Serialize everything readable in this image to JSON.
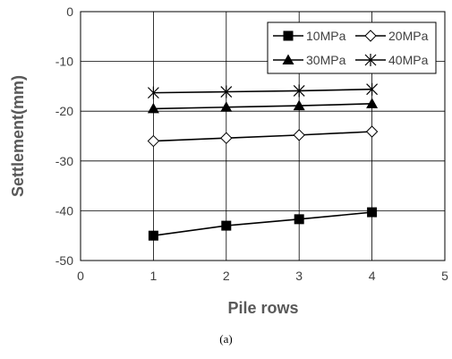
{
  "caption": "(a)",
  "chart_data": {
    "type": "line",
    "title": "",
    "xlabel": "Pile rows",
    "ylabel": "Settlement(mm)",
    "xlim": [
      0,
      5
    ],
    "ylim": [
      -50,
      0
    ],
    "xticks": [
      0,
      1,
      2,
      3,
      4,
      5
    ],
    "yticks": [
      0,
      -10,
      -20,
      -30,
      -40,
      -50
    ],
    "grid": true,
    "legend_position": "top-right",
    "series": [
      {
        "name": "10MPa",
        "marker": "filled-square",
        "color": "#000000",
        "x": [
          1,
          2,
          3,
          4
        ],
        "y": [
          -45.0,
          -43.0,
          -41.7,
          -40.3
        ]
      },
      {
        "name": "20MPa",
        "marker": "open-diamond",
        "color": "#000000",
        "x": [
          1,
          2,
          3,
          4
        ],
        "y": [
          -26.0,
          -25.4,
          -24.8,
          -24.1
        ]
      },
      {
        "name": "30MPa",
        "marker": "filled-triangle",
        "color": "#000000",
        "x": [
          1,
          2,
          3,
          4
        ],
        "y": [
          -19.5,
          -19.2,
          -18.9,
          -18.5
        ]
      },
      {
        "name": "40MPa",
        "marker": "star",
        "color": "#000000",
        "x": [
          1,
          2,
          3,
          4
        ],
        "y": [
          -16.3,
          -16.1,
          -15.9,
          -15.6
        ]
      }
    ]
  }
}
